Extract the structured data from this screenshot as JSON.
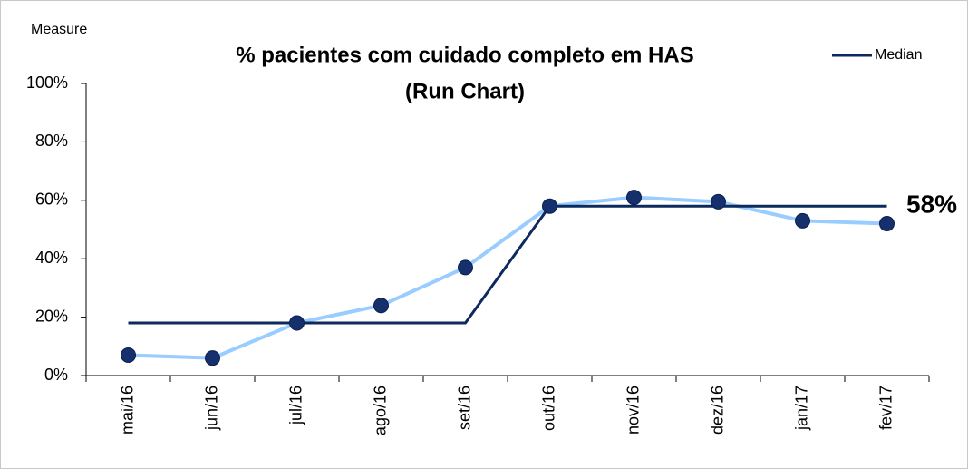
{
  "chart_data": {
    "type": "line",
    "title": "% pacientes com cuidado completo em HAS",
    "subtitle": "(Run Chart)",
    "y_label": "Measure",
    "categories": [
      "mai/16",
      "jun/16",
      "jul/16",
      "ago/16",
      "set/16",
      "out/16",
      "nov/16",
      "dez/16",
      "jan/17",
      "fev/17"
    ],
    "series": [
      {
        "color": "#99ccff",
        "marker_color": "#16306e",
        "values": [
          7,
          6,
          18,
          24,
          37,
          58,
          61,
          59.5,
          53,
          52
        ]
      },
      {
        "name": "Median",
        "color": "#0d2a5e",
        "values": [
          18,
          18,
          18,
          18,
          18,
          58,
          58,
          58,
          58,
          58
        ]
      }
    ],
    "annotation": "58%",
    "ylim": [
      0,
      100
    ],
    "yticks": [
      {
        "value": 0,
        "label": "0%"
      },
      {
        "value": 20,
        "label": "20%"
      },
      {
        "value": 40,
        "label": "40%"
      },
      {
        "value": 60,
        "label": "60%"
      },
      {
        "value": 80,
        "label": "80%"
      },
      {
        "value": 100,
        "label": "100%"
      }
    ],
    "grid": false,
    "legend": "top-right"
  }
}
